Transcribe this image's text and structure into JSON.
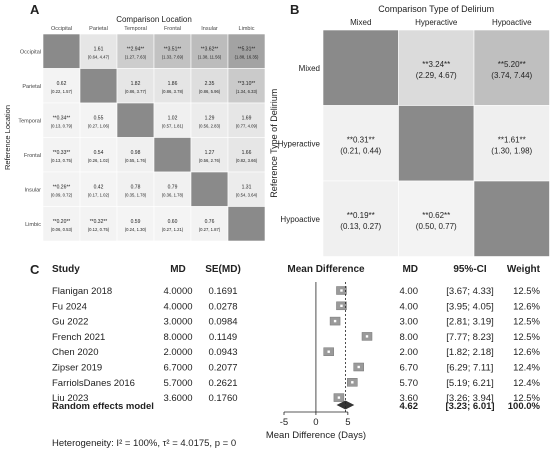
{
  "panel_a": {
    "label": "A",
    "title": "Comparison Location",
    "ylabel": "Reference Location",
    "columns": [
      "Occipital",
      "Parietal",
      "Temporal",
      "Frontal",
      "Insular",
      "Limbic"
    ],
    "rows": [
      "Occipital",
      "Parietal",
      "Temporal",
      "Frontal",
      "Insular",
      "Limbic"
    ],
    "cells": [
      [
        null,
        {
          "v": "1.61",
          "ci": "(0.64, 4.47)",
          "s": 0.12
        },
        {
          "v": "**2.94**",
          "ci": "(1.27, 7.63)",
          "s": 0.3
        },
        {
          "v": "**3.51**",
          "ci": "(1.33, 7.69)",
          "s": 0.38
        },
        {
          "v": "**3.62**",
          "ci": "(1.38, 11.56)",
          "s": 0.42
        },
        {
          "v": "**5.31**",
          "ci": "(1.88, 16.35)",
          "s": 0.6
        }
      ],
      [
        {
          "v": "0.62",
          "ci": "(0.22, 1.57)",
          "s": 0.03
        },
        null,
        {
          "v": "1.82",
          "ci": "(0.86, 3.77)",
          "s": 0.12
        },
        {
          "v": "1.86",
          "ci": "(0.86, 3.78)",
          "s": 0.13
        },
        {
          "v": "2.35",
          "ci": "(0.86, 5.96)",
          "s": 0.18
        },
        {
          "v": "**3.10**",
          "ci": "(1.34, 6.33)",
          "s": 0.32
        }
      ],
      [
        {
          "v": "**0.34**",
          "ci": "(0.13, 0.79)",
          "s": 0.03
        },
        {
          "v": "0.55",
          "ci": "(0.27, 1.06)",
          "s": 0.02
        },
        null,
        {
          "v": "1.02",
          "ci": "(0.57, 1.81)",
          "s": 0.05
        },
        {
          "v": "1.29",
          "ci": "(0.56, 2.83)",
          "s": 0.08
        },
        {
          "v": "1.69",
          "ci": "(0.77, 4.09)",
          "s": 0.12
        }
      ],
      [
        {
          "v": "**0.33**",
          "ci": "(0.13, 0.75)",
          "s": 0.03
        },
        {
          "v": "0.54",
          "ci": "(0.26, 1.02)",
          "s": 0.02
        },
        {
          "v": "0.98",
          "ci": "(0.55, 1.76)",
          "s": 0.05
        },
        null,
        {
          "v": "1.27",
          "ci": "(0.56, 2.76)",
          "s": 0.08
        },
        {
          "v": "1.66",
          "ci": "(0.82, 3.66)",
          "s": 0.12
        }
      ],
      [
        {
          "v": "**0.26**",
          "ci": "(0.09, 0.72)",
          "s": 0.03
        },
        {
          "v": "0.42",
          "ci": "(0.17, 1.02)",
          "s": 0.02
        },
        {
          "v": "0.78",
          "ci": "(0.35, 1.78)",
          "s": 0.04
        },
        {
          "v": "0.79",
          "ci": "(0.36, 1.78)",
          "s": 0.04
        },
        null,
        {
          "v": "1.31",
          "ci": "(0.54, 3.64)",
          "s": 0.08
        }
      ],
      [
        {
          "v": "**0.20**",
          "ci": "(0.06, 0.53)",
          "s": 0.03
        },
        {
          "v": "**0.32**",
          "ci": "(0.12, 0.75)",
          "s": 0.03
        },
        {
          "v": "0.59",
          "ci": "(0.24, 1.30)",
          "s": 0.02
        },
        {
          "v": "0.60",
          "ci": "(0.27, 1.21)",
          "s": 0.02
        },
        {
          "v": "0.76",
          "ci": "(0.27, 1.87)",
          "s": 0.03
        },
        null
      ]
    ]
  },
  "panel_b": {
    "label": "B",
    "title": "Comparison Type of Delirium",
    "ylabel": "Reference Type of Delirium",
    "columns": [
      "Mixed",
      "Hyperactive",
      "Hypoactive"
    ],
    "rows": [
      "Mixed",
      "Hyperactive",
      "Hypoactive"
    ],
    "cells": [
      [
        null,
        {
          "v": "**3.24**",
          "ci": "(2.29, 4.67)",
          "s": 0.2
        },
        {
          "v": "**5.20**",
          "ci": "(3.74, 7.44)",
          "s": 0.4
        }
      ],
      [
        {
          "v": "**0.31**",
          "ci": "(0.21, 0.44)",
          "s": 0.04
        },
        null,
        {
          "v": "**1.61**",
          "ci": "(1.30, 1.98)",
          "s": 0.06
        }
      ],
      [
        {
          "v": "**0.19**",
          "ci": "(0.13, 0.27)",
          "s": 0.05
        },
        {
          "v": "**0.62**",
          "ci": "(0.50, 0.77)",
          "s": 0.03
        },
        null
      ]
    ]
  },
  "panel_c": {
    "label": "C",
    "headers": {
      "study": "Study",
      "md": "MD",
      "se": "SE(MD)",
      "plot": "Mean Difference",
      "md2": "MD",
      "ci": "95%-CI",
      "weight": "Weight"
    },
    "studies": [
      {
        "study": "Flanigan 2018",
        "md": "4.0000",
        "se": "0.1691",
        "md2": "4.00",
        "ci": "[3.67; 4.33]",
        "weight": "12.5%"
      },
      {
        "study": "Fu 2024",
        "md": "4.0000",
        "se": "0.0278",
        "md2": "4.00",
        "ci": "[3.95; 4.05]",
        "weight": "12.6%"
      },
      {
        "study": "Gu 2022",
        "md": "3.0000",
        "se": "0.0984",
        "md2": "3.00",
        "ci": "[2.81; 3.19]",
        "weight": "12.5%"
      },
      {
        "study": "French 2021",
        "md": "8.0000",
        "se": "0.1149",
        "md2": "8.00",
        "ci": "[7.77; 8.23]",
        "weight": "12.5%"
      },
      {
        "study": "Chen 2020",
        "md": "2.0000",
        "se": "0.0943",
        "md2": "2.00",
        "ci": "[1.82; 2.18]",
        "weight": "12.6%"
      },
      {
        "study": "Zipser 2019",
        "md": "6.7000",
        "se": "0.2077",
        "md2": "6.70",
        "ci": "[6.29; 7.11]",
        "weight": "12.4%"
      },
      {
        "study": "FarriolsDanes 2016",
        "md": "5.7000",
        "se": "0.2621",
        "md2": "5.70",
        "ci": "[5.19; 6.21]",
        "weight": "12.4%"
      },
      {
        "study": "Liu 2023",
        "md": "3.6000",
        "se": "0.1760",
        "md2": "3.60",
        "ci": "[3.26; 3.94]",
        "weight": "12.5%"
      }
    ],
    "summary": {
      "label": "Random effects model",
      "md2": "4.62",
      "ci": "[3.23; 6.01]",
      "weight": "100.0%"
    },
    "heterogeneity": "Heterogeneity: I² = 100%, τ² = 4.0175, p = 0",
    "xlabel": "Mean Difference (Days)",
    "xticks": [
      "-5",
      "0",
      "5"
    ]
  },
  "chart_data": [
    {
      "type": "heatmap",
      "title": "Comparison Location",
      "ylabel": "Reference Location",
      "x_categories": [
        "Occipital",
        "Parietal",
        "Temporal",
        "Frontal",
        "Insular",
        "Limbic"
      ],
      "y_categories": [
        "Occipital",
        "Parietal",
        "Temporal",
        "Frontal",
        "Insular",
        "Limbic"
      ],
      "values": [
        [
          null,
          1.61,
          2.94,
          3.51,
          3.62,
          5.31
        ],
        [
          0.62,
          null,
          1.82,
          1.86,
          2.35,
          3.1
        ],
        [
          0.34,
          0.55,
          null,
          1.02,
          1.29,
          1.69
        ],
        [
          0.33,
          0.54,
          0.98,
          null,
          1.27,
          1.66
        ],
        [
          0.26,
          0.42,
          0.78,
          0.79,
          null,
          1.31
        ],
        [
          0.2,
          0.32,
          0.59,
          0.6,
          0.76,
          null
        ]
      ]
    },
    {
      "type": "heatmap",
      "title": "Comparison Type of Delirium",
      "ylabel": "Reference Type of Delirium",
      "x_categories": [
        "Mixed",
        "Hyperactive",
        "Hypoactive"
      ],
      "y_categories": [
        "Mixed",
        "Hyperactive",
        "Hypoactive"
      ],
      "values": [
        [
          null,
          3.24,
          5.2
        ],
        [
          0.31,
          null,
          1.61
        ],
        [
          0.19,
          0.62,
          null
        ]
      ]
    },
    {
      "type": "scatter",
      "categories": [
        "Flanigan 2018",
        "Fu 2024",
        "Gu 2022",
        "French 2021",
        "Chen 2020",
        "Zipser 2019",
        "FarriolsDanes 2016",
        "Liu 2023"
      ],
      "values": [
        4.0,
        4.0,
        3.0,
        8.0,
        2.0,
        6.7,
        5.7,
        3.6
      ],
      "ci_low": [
        3.67,
        3.95,
        2.81,
        7.77,
        1.82,
        6.29,
        5.19,
        3.26
      ],
      "ci_high": [
        4.33,
        4.05,
        3.19,
        8.23,
        2.18,
        7.11,
        6.21,
        3.94
      ],
      "summary": {
        "value": 4.62,
        "ci": [
          3.23,
          6.01
        ]
      },
      "xlabel": "Mean Difference (Days)",
      "xlim": [
        -5,
        8
      ]
    }
  ]
}
